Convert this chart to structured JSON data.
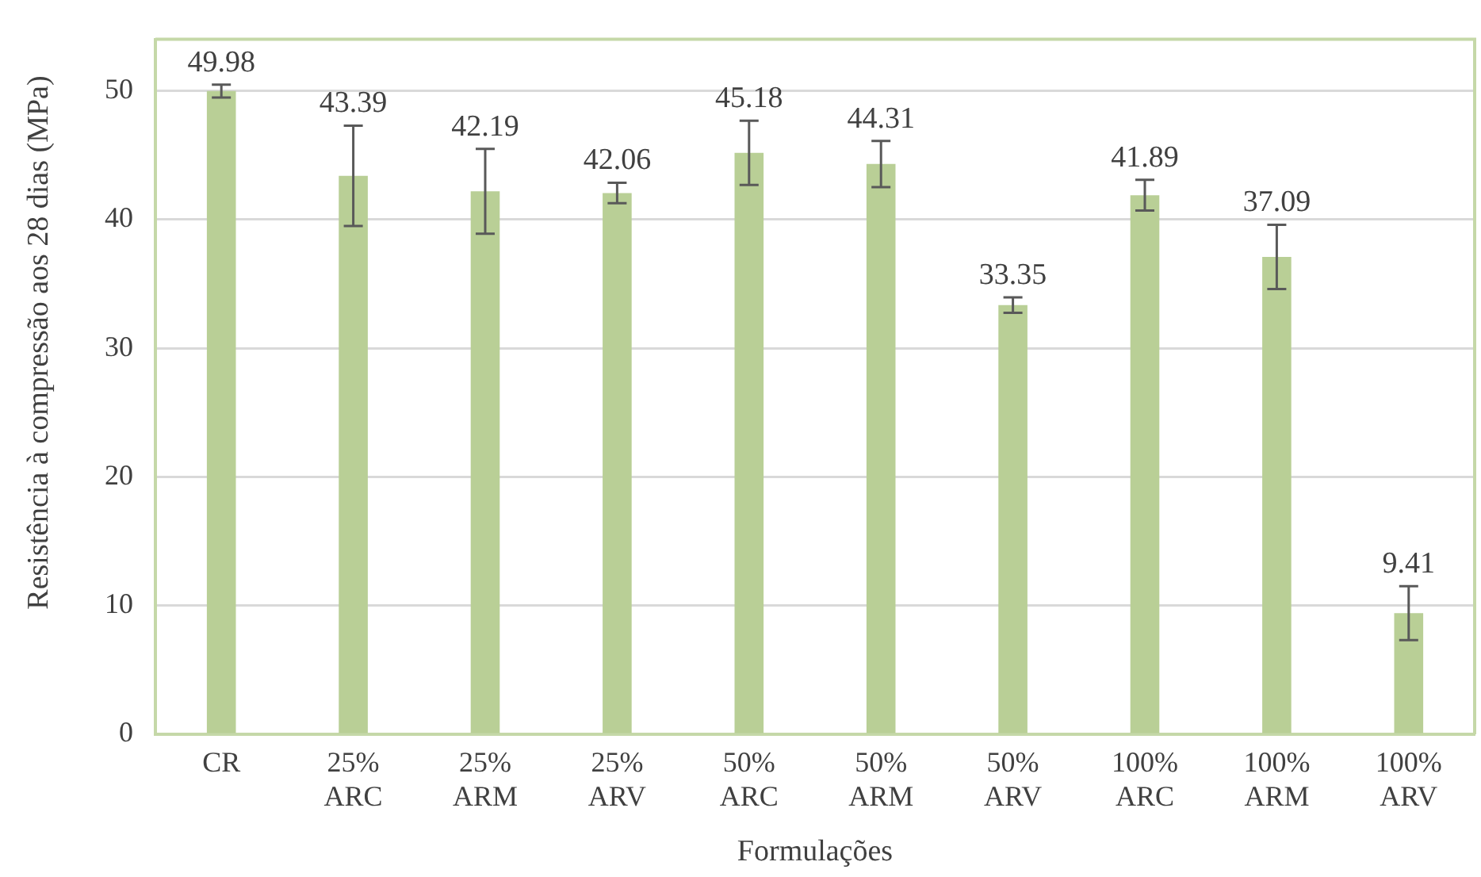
{
  "chart_data": {
    "type": "bar",
    "xlabel": "Formulações",
    "ylabel": "Resistência à compressão aos 28 dias (MPa)",
    "categories": [
      "CR",
      "25% ARC",
      "25% ARM",
      "25% ARV",
      "50% ARC",
      "50% ARM",
      "50% ARV",
      "100% ARC",
      "100% ARM",
      "100% ARV"
    ],
    "values": [
      49.98,
      43.39,
      42.19,
      42.06,
      45.18,
      44.31,
      33.35,
      41.89,
      37.09,
      9.41
    ],
    "errors": [
      0.5,
      3.9,
      3.3,
      0.8,
      2.5,
      1.8,
      0.6,
      1.2,
      2.5,
      2.1
    ],
    "color": "#b9cf96",
    "ylim": [
      0,
      54
    ],
    "yticks": [
      0,
      10,
      20,
      30,
      40,
      50
    ],
    "grid": "y",
    "data_labels": true,
    "legend": false
  }
}
